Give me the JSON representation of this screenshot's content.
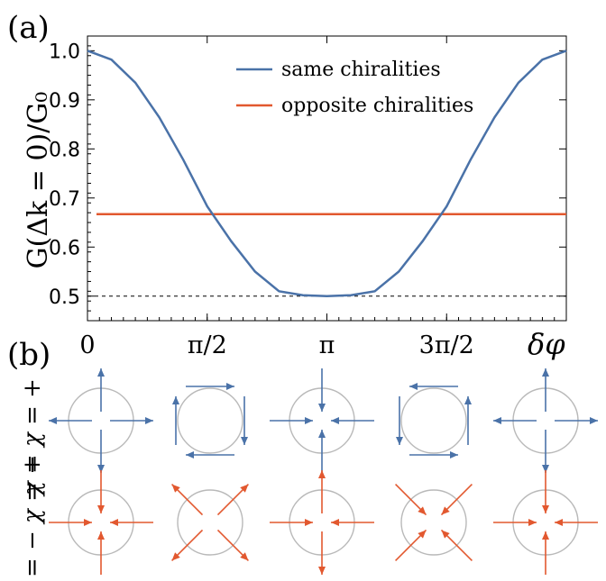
{
  "panel_labels": {
    "a": "(a)",
    "b": "(b)"
  },
  "colors": {
    "same": "#4a72a8",
    "opposite": "#e2582f",
    "circle": "#b9b9b9",
    "axis": "#000000",
    "ref": "#000000"
  },
  "chart_data": {
    "type": "line",
    "ylabel": "G(Δk = 0)/G₀",
    "xlabel": "δφ",
    "xlim": [
      0,
      6.2832
    ],
    "ylim": [
      0.45,
      1.03
    ],
    "x_ticks": [
      {
        "value": 0,
        "label": "0"
      },
      {
        "value": 1.5708,
        "label": "π/2"
      },
      {
        "value": 3.1416,
        "label": "π"
      },
      {
        "value": 4.7124,
        "label": "3π/2"
      }
    ],
    "y_ticks": [
      {
        "value": 0.5,
        "label": "0.5"
      },
      {
        "value": 0.6,
        "label": "0.6"
      },
      {
        "value": 0.7,
        "label": "0.7"
      },
      {
        "value": 0.8,
        "label": "0.8"
      },
      {
        "value": 0.9,
        "label": "0.9"
      },
      {
        "value": 1.0,
        "label": "1.0"
      }
    ],
    "legend_position": "top-right",
    "series": [
      {
        "name": "same chiralities",
        "color": "#4a72a8",
        "x": [
          0,
          0.3142,
          0.6283,
          0.9425,
          1.2566,
          1.5708,
          1.885,
          2.1991,
          2.5133,
          2.8274,
          3.1416,
          3.4558,
          3.7699,
          4.0841,
          4.3982,
          4.7124,
          5.0265,
          5.3407,
          5.6549,
          5.969,
          6.2832
        ],
        "y": [
          1.0,
          0.982,
          0.935,
          0.864,
          0.778,
          0.683,
          0.612,
          0.55,
          0.51,
          0.502,
          0.5,
          0.502,
          0.51,
          0.55,
          0.612,
          0.683,
          0.778,
          0.864,
          0.935,
          0.982,
          1.0
        ]
      },
      {
        "name": "opposite chiralities",
        "color": "#e2582f",
        "x": [
          0,
          6.2832
        ],
        "y": [
          0.667,
          0.667
        ]
      }
    ],
    "reference_lines": [
      {
        "y": 0.5,
        "style": "dashed"
      }
    ]
  },
  "panel_b": {
    "row_labels": [
      "χ = χ = +",
      "χ = − χ = +"
    ],
    "columns": 5,
    "rows": [
      {
        "color": "same",
        "patterns": [
          "out",
          "ccw",
          "in",
          "cw",
          "out"
        ]
      },
      {
        "color": "opposite",
        "patterns": [
          "in",
          "diag-out",
          "in-out",
          "diag-in",
          "in"
        ]
      }
    ]
  }
}
